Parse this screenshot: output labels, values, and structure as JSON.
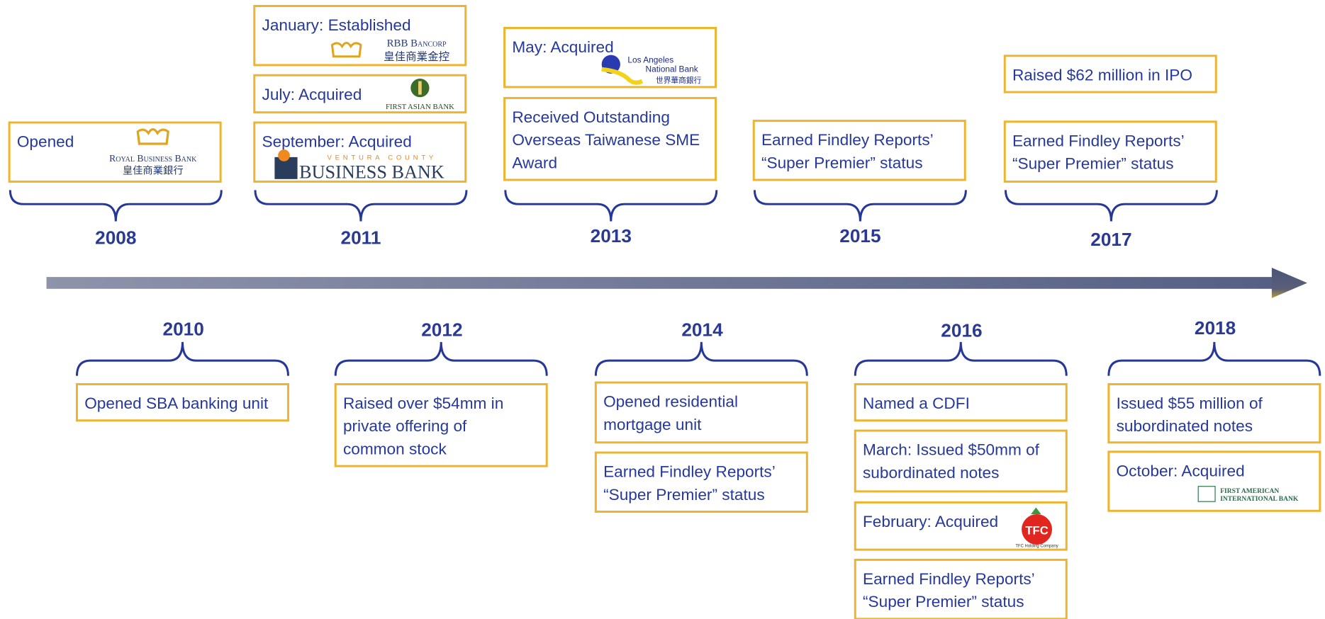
{
  "above": [
    {
      "year": "2008",
      "boxes": [
        {
          "lines": [
            "Opened"
          ],
          "logo": [
            "Royal Business Bank",
            "皇佳商業銀行"
          ]
        }
      ]
    },
    {
      "year": "2011",
      "boxes": [
        {
          "lines": [
            "January:  Established"
          ],
          "logo": [
            "RBB Bancorp",
            "皇佳商業金控"
          ]
        },
        {
          "lines": [
            "July:  Acquired"
          ],
          "logo": [
            "FIRST ASIAN BANK"
          ]
        },
        {
          "lines": [
            "September:  Acquired"
          ],
          "logo": [
            "VENTURA COUNTY",
            "BUSINESS BANK"
          ]
        }
      ]
    },
    {
      "year": "2013",
      "boxes": [
        {
          "lines": [
            "May:  Acquired"
          ],
          "logo": [
            "Los Angeles",
            "National Bank",
            "世界華商銀行"
          ]
        },
        {
          "lines": [
            "Received Outstanding",
            "Overseas Taiwanese SME",
            "Award"
          ]
        }
      ]
    },
    {
      "year": "2015",
      "boxes": [
        {
          "lines": [
            "Earned Findley Reports’",
            "“Super Premier” status"
          ]
        }
      ]
    },
    {
      "year": "2017",
      "boxes": [
        {
          "lines": [
            "Raised $62 million in IPO"
          ]
        },
        {
          "lines": [
            "Earned Findley Reports’",
            "“Super Premier” status"
          ]
        }
      ]
    }
  ],
  "below": [
    {
      "year": "2010",
      "boxes": [
        {
          "lines": [
            "Opened SBA banking unit"
          ]
        }
      ]
    },
    {
      "year": "2012",
      "boxes": [
        {
          "lines": [
            "Raised over $54mm in",
            "private offering of",
            "common stock"
          ]
        }
      ]
    },
    {
      "year": "2014",
      "boxes": [
        {
          "lines": [
            "Opened residential",
            "mortgage unit"
          ]
        },
        {
          "lines": [
            "Earned Findley Reports’",
            "“Super Premier” status"
          ]
        }
      ]
    },
    {
      "year": "2016",
      "boxes": [
        {
          "lines": [
            "Named a CDFI"
          ]
        },
        {
          "lines": [
            "March:  Issued $50mm of",
            "subordinated notes"
          ]
        },
        {
          "lines": [
            "February:  Acquired"
          ],
          "logo": [
            "TFC",
            "TFC Holding Company"
          ]
        },
        {
          "lines": [
            "Earned Findley Reports’",
            "“Super Premier” status"
          ]
        }
      ]
    },
    {
      "year": "2018",
      "boxes": [
        {
          "lines": [
            "Issued $55 million of",
            "subordinated notes"
          ]
        },
        {
          "lines": [
            "October: Acquired"
          ],
          "logo": [
            "FIRST AMERICAN",
            "INTERNATIONAL BANK"
          ]
        }
      ]
    }
  ]
}
